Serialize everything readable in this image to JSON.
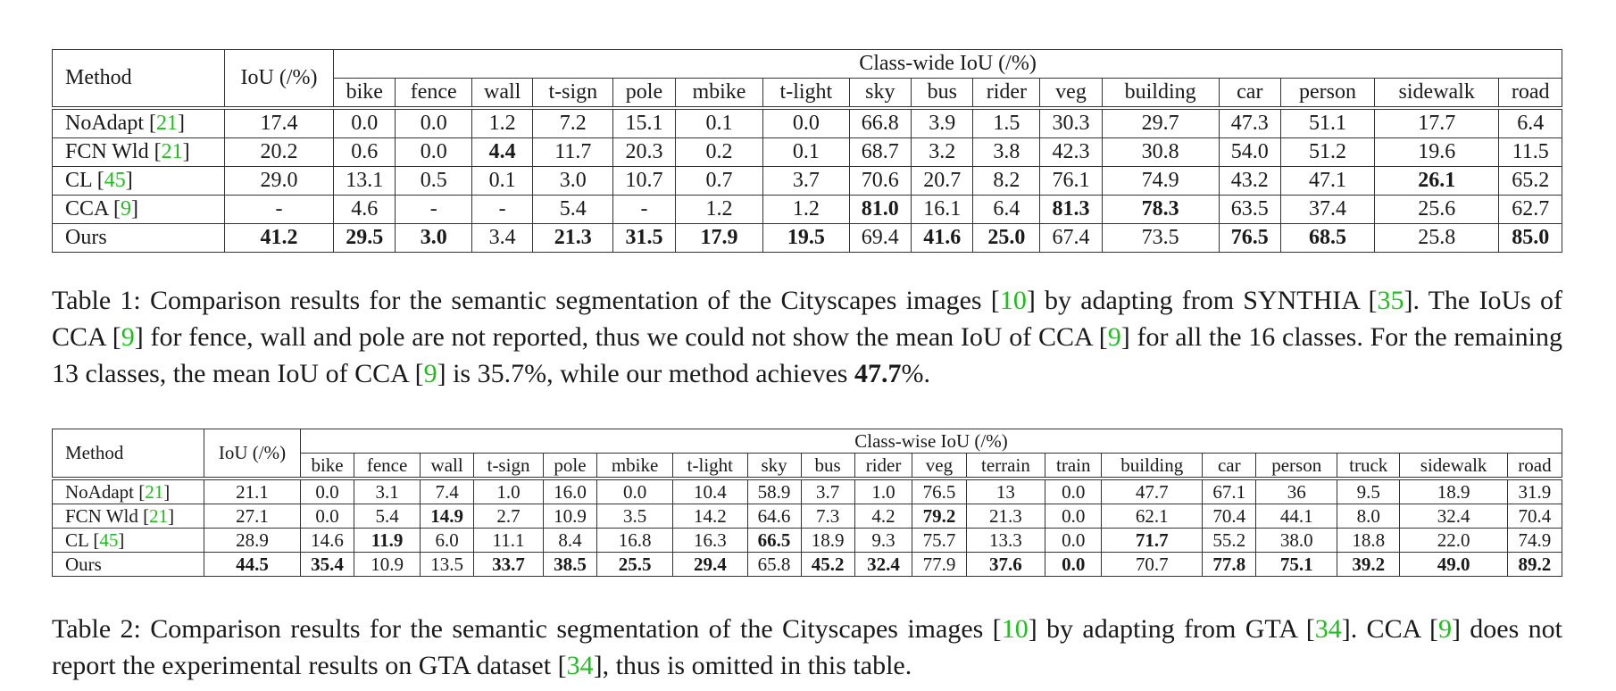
{
  "table1": {
    "h_method": "Method",
    "h_iou": "IoU (/%)",
    "h_group": "Class-wide IoU (/%)",
    "classes": [
      "bike",
      "fence",
      "wall",
      "t-sign",
      "pole",
      "mbike",
      "t-light",
      "sky",
      "bus",
      "rider",
      "veg",
      "building",
      "car",
      "person",
      "sidewalk",
      "road"
    ],
    "rows": [
      {
        "name": "NoAdapt ",
        "ref": "21",
        "values": [
          "17.4",
          "0.0",
          "0.0",
          "1.2",
          "7.2",
          "15.1",
          "0.1",
          "0.0",
          "66.8",
          "3.9",
          "1.5",
          "30.3",
          "29.7",
          "47.3",
          "51.1",
          "17.7",
          "6.4"
        ],
        "bold": []
      },
      {
        "name": "FCN Wld ",
        "ref": "21",
        "values": [
          "20.2",
          "0.6",
          "0.0",
          "4.4",
          "11.7",
          "20.3",
          "0.2",
          "0.1",
          "68.7",
          "3.2",
          "3.8",
          "42.3",
          "30.8",
          "54.0",
          "51.2",
          "19.6",
          "11.5"
        ],
        "bold": [
          3
        ]
      },
      {
        "name": "CL ",
        "ref": "45",
        "values": [
          "29.0",
          "13.1",
          "0.5",
          "0.1",
          "3.0",
          "10.7",
          "0.7",
          "3.7",
          "70.6",
          "20.7",
          "8.2",
          "76.1",
          "74.9",
          "43.2",
          "47.1",
          "26.1",
          "65.2"
        ],
        "bold": [
          15
        ]
      },
      {
        "name": "CCA ",
        "ref": "9",
        "values": [
          "-",
          "4.6",
          "-",
          "-",
          "5.4",
          "-",
          "1.2",
          "1.2",
          "81.0",
          "16.1",
          "6.4",
          "81.3",
          "78.3",
          "63.5",
          "37.4",
          "25.6",
          "62.7"
        ],
        "bold": [
          8,
          11,
          12
        ]
      },
      {
        "name": "Ours",
        "ref": "",
        "values": [
          "41.2",
          "29.5",
          "3.0",
          "3.4",
          "21.3",
          "31.5",
          "17.9",
          "19.5",
          "69.4",
          "41.6",
          "25.0",
          "67.4",
          "73.5",
          "76.5",
          "68.5",
          "25.8",
          "85.0"
        ],
        "bold": [
          0,
          1,
          2,
          4,
          5,
          6,
          7,
          9,
          10,
          13,
          14,
          16
        ]
      }
    ]
  },
  "caption1": {
    "p1": "Table 1: Comparison results for the semantic segmentation of the Cityscapes images [",
    "r1": "10",
    "p2": "] by adapting from SYNTHIA [",
    "r2": "35",
    "p3": "]. The IoUs of CCA [",
    "r3": "9",
    "p4": "] for fence, wall and pole are not reported, thus we could not show the mean IoU of CCA [",
    "r4": "9",
    "p5": "] for all the 16 classes. For the remaining 13 classes, the mean IoU of CCA [",
    "r5": "9",
    "p6": "] is 35.7%, while our method achieves ",
    "bold": "47.7",
    "p7": "%."
  },
  "table2": {
    "h_method": "Method",
    "h_iou": "IoU (/%)",
    "h_group": "Class-wise IoU (/%)",
    "classes": [
      "bike",
      "fence",
      "wall",
      "t-sign",
      "pole",
      "mbike",
      "t-light",
      "sky",
      "bus",
      "rider",
      "veg",
      "terrain",
      "train",
      "building",
      "car",
      "person",
      "truck",
      "sidewalk",
      "road"
    ],
    "rows": [
      {
        "name": "NoAdapt ",
        "ref": "21",
        "values": [
          "21.1",
          "0.0",
          "3.1",
          "7.4",
          "1.0",
          "16.0",
          "0.0",
          "10.4",
          "58.9",
          "3.7",
          "1.0",
          "76.5",
          "13",
          "0.0",
          "47.7",
          "67.1",
          "36",
          "9.5",
          "18.9",
          "31.9"
        ],
        "bold": []
      },
      {
        "name": "FCN Wld ",
        "ref": "21",
        "values": [
          "27.1",
          "0.0",
          "5.4",
          "14.9",
          "2.7",
          "10.9",
          "3.5",
          "14.2",
          "64.6",
          "7.3",
          "4.2",
          "79.2",
          "21.3",
          "0.0",
          "62.1",
          "70.4",
          "44.1",
          "8.0",
          "32.4",
          "70.4"
        ],
        "bold": [
          3,
          11
        ]
      },
      {
        "name": "CL ",
        "ref": "45",
        "values": [
          "28.9",
          "14.6",
          "11.9",
          "6.0",
          "11.1",
          "8.4",
          "16.8",
          "16.3",
          "66.5",
          "18.9",
          "9.3",
          "75.7",
          "13.3",
          "0.0",
          "71.7",
          "55.2",
          "38.0",
          "18.8",
          "22.0",
          "74.9"
        ],
        "bold": [
          2,
          8,
          14
        ]
      },
      {
        "name": "Ours",
        "ref": "",
        "values": [
          "44.5",
          "35.4",
          "10.9",
          "13.5",
          "33.7",
          "38.5",
          "25.5",
          "29.4",
          "65.8",
          "45.2",
          "32.4",
          "77.9",
          "37.6",
          "0.0",
          "70.7",
          "77.8",
          "75.1",
          "39.2",
          "49.0",
          "89.2"
        ],
        "bold": [
          0,
          1,
          4,
          5,
          6,
          7,
          9,
          10,
          12,
          13,
          15,
          16,
          17,
          18,
          19
        ]
      }
    ]
  },
  "caption2": {
    "p1": "Table 2: Comparison results for the semantic segmentation of the Cityscapes images [",
    "r1": "10",
    "p2": "] by adapting from GTA [",
    "r2": "34",
    "p3": "]. CCA [",
    "r3": "9",
    "p4": "] does not report the experimental results on GTA dataset [",
    "r4": "34",
    "p5": "], thus is omitted in this table."
  }
}
